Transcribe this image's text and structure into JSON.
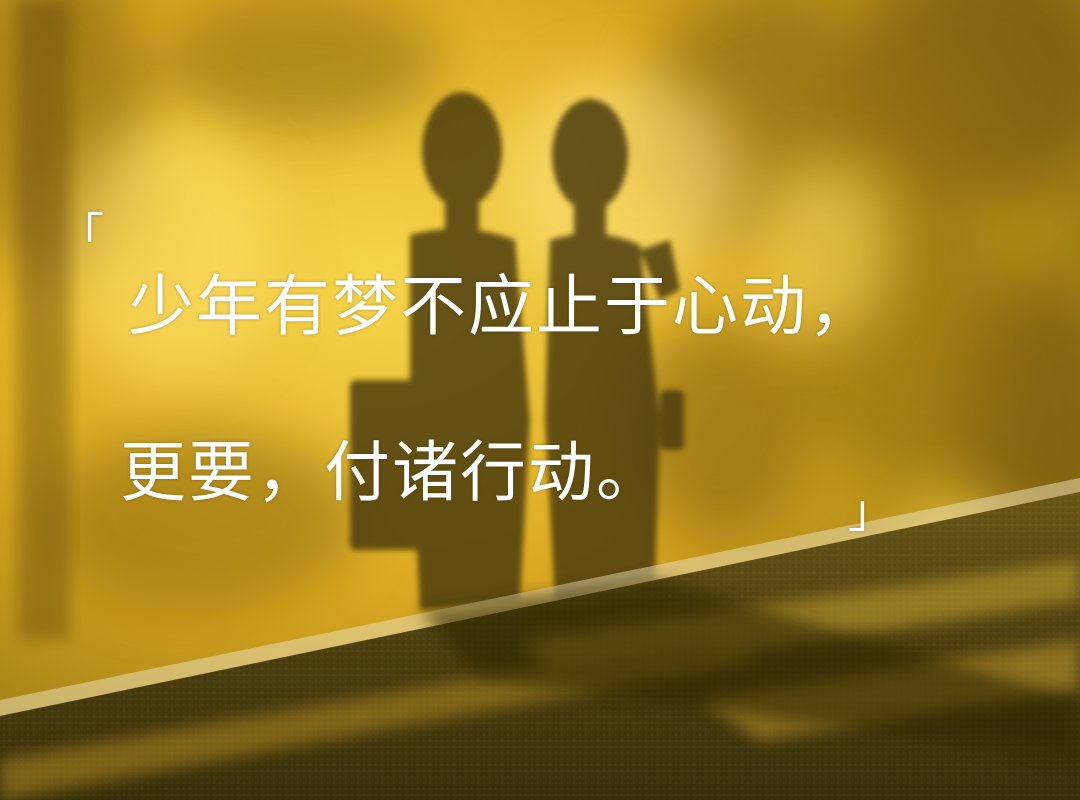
{
  "image": {
    "description_colors": {
      "wall_light": "#f2cc3c",
      "wall_mid": "#d8a820",
      "wall_dark": "#8a6a10",
      "shadow": "#4a3a08",
      "ground": "#5a4a14",
      "text": "#ffffff"
    }
  },
  "quote": {
    "open_bracket": "「",
    "line1": "少年有梦不应止于心动，",
    "line2": "更要，付诸行动。",
    "close_bracket": "」"
  }
}
